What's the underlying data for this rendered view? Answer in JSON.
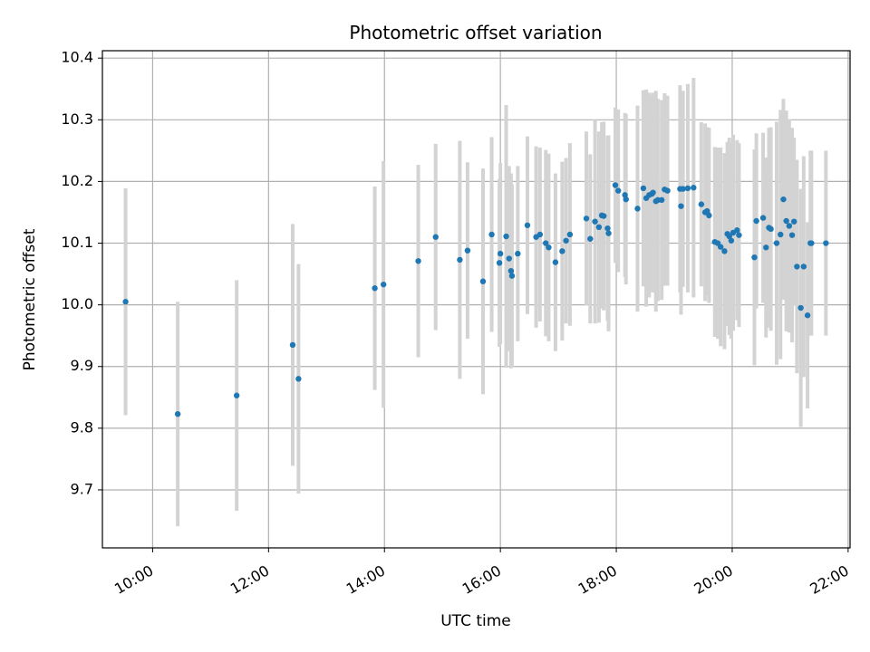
{
  "chart_data": {
    "type": "scatter",
    "title": "Photometric offset variation",
    "xlabel": "UTC time",
    "ylabel": "Photometric offset",
    "x_axis_type": "time",
    "xlim": [
      "09:08",
      "22:02"
    ],
    "ylim": [
      9.606,
      10.412
    ],
    "grid": true,
    "x_ticks": [
      "10:00",
      "12:00",
      "14:00",
      "16:00",
      "18:00",
      "20:00",
      "22:00"
    ],
    "y_ticks": [
      9.7,
      9.8,
      9.9,
      10.0,
      10.1,
      10.2,
      10.3,
      10.4
    ],
    "colors": {
      "points": "#1f77b4",
      "error_bars": "#d3d3d3",
      "grid": "#b0b0b0"
    },
    "series": [
      {
        "x": [
          "09:32",
          "10:26",
          "11:27",
          "12:25",
          "12:31",
          "13:50",
          "13:59",
          "14:35",
          "14:53",
          "15:18",
          "15:26",
          "15:42",
          "15:51",
          "15:59",
          "16:00",
          "16:06",
          "16:09",
          "16:11",
          "16:12",
          "16:18",
          "16:28",
          "16:37",
          "16:41",
          "16:47",
          "16:50",
          "16:57",
          "17:04",
          "17:08",
          "17:12",
          "17:29",
          "17:33",
          "17:38",
          "17:42",
          "17:45",
          "17:47",
          "17:51",
          "17:52",
          "17:59",
          "18:02",
          "18:09",
          "18:10",
          "18:22",
          "18:28",
          "18:31",
          "18:34",
          "18:37",
          "18:38",
          "18:41",
          "18:43",
          "18:47",
          "18:50",
          "18:53",
          "19:06",
          "19:07",
          "19:09",
          "19:14",
          "19:20",
          "19:28",
          "19:32",
          "19:34",
          "19:36",
          "19:42",
          "19:45",
          "19:48",
          "19:52",
          "19:55",
          "19:57",
          "19:59",
          "20:01",
          "20:05",
          "20:07",
          "20:23",
          "20:25",
          "20:32",
          "20:35",
          "20:38",
          "20:40",
          "20:46",
          "20:50",
          "20:53",
          "20:56",
          "20:59",
          "21:02",
          "21:04",
          "21:07",
          "21:11",
          "21:14",
          "21:18",
          "21:21",
          "21:22",
          "21:37"
        ],
        "y": [
          10.005,
          9.823,
          9.853,
          9.935,
          9.88,
          10.027,
          10.033,
          10.071,
          10.11,
          10.073,
          10.088,
          10.038,
          10.114,
          10.068,
          10.083,
          10.111,
          10.075,
          10.055,
          10.047,
          10.083,
          10.129,
          10.11,
          10.114,
          10.1,
          10.093,
          10.069,
          10.087,
          10.104,
          10.114,
          10.14,
          10.107,
          10.135,
          10.126,
          10.145,
          10.144,
          10.124,
          10.116,
          10.194,
          10.185,
          10.178,
          10.171,
          10.156,
          10.189,
          10.173,
          10.178,
          10.18,
          10.182,
          10.168,
          10.17,
          10.17,
          10.187,
          10.185,
          10.188,
          10.16,
          10.188,
          10.189,
          10.19,
          10.163,
          10.15,
          10.152,
          10.145,
          10.102,
          10.1,
          10.094,
          10.087,
          10.115,
          10.111,
          10.104,
          10.117,
          10.121,
          10.113,
          10.077,
          10.136,
          10.141,
          10.093,
          10.125,
          10.123,
          10.1,
          10.114,
          10.171,
          10.136,
          10.128,
          10.113,
          10.135,
          10.062,
          9.995,
          10.062,
          9.983,
          10.1,
          10.1,
          10.1
        ],
        "err": [
          0.184,
          0.182,
          0.187,
          0.196,
          0.186,
          0.165,
          0.2,
          0.156,
          0.151,
          0.193,
          0.143,
          0.183,
          0.158,
          0.136,
          0.147,
          0.213,
          0.15,
          0.158,
          0.148,
          0.142,
          0.144,
          0.147,
          0.141,
          0.151,
          0.152,
          0.144,
          0.145,
          0.134,
          0.148,
          0.141,
          0.137,
          0.165,
          0.155,
          0.151,
          0.153,
          0.15,
          0.159,
          0.126,
          0.132,
          0.133,
          0.138,
          0.167,
          0.159,
          0.176,
          0.166,
          0.158,
          0.162,
          0.179,
          0.164,
          0.162,
          0.156,
          0.154,
          0.168,
          0.176,
          0.159,
          0.169,
          0.178,
          0.133,
          0.144,
          0.136,
          0.142,
          0.154,
          0.155,
          0.161,
          0.159,
          0.149,
          0.16,
          0.159,
          0.159,
          0.146,
          0.149,
          0.175,
          0.142,
          0.138,
          0.146,
          0.162,
          0.165,
          0.197,
          0.202,
          0.163,
          0.179,
          0.173,
          0.174,
          0.136,
          0.173,
          0.193,
          0.179,
          0.151,
          0.15,
          0.15,
          0.15
        ]
      }
    ]
  }
}
